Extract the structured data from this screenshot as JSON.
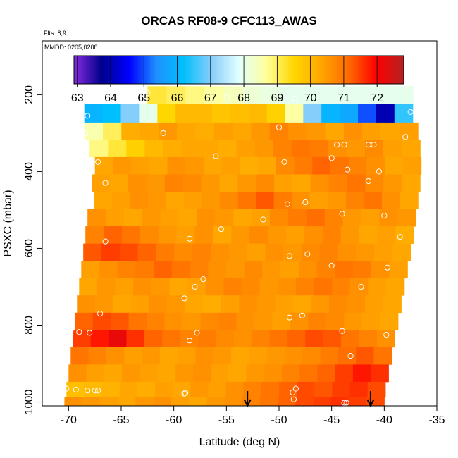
{
  "title": "ORCAS RF08-9 CFC113_AWAS",
  "flights_note": "Flts: 8,9",
  "date_note": "MMDD: 0205,0208",
  "chart_data": {
    "type": "heatmap",
    "title": "ORCAS RF08-9 CFC113_AWAS",
    "xlabel": "Latitude (deg N)",
    "ylabel": "PSXC (mbar)",
    "xlim": [
      -72.5,
      -35
    ],
    "ylim": [
      1010,
      60
    ],
    "y_reversed": true,
    "x_ticks": [
      -70,
      -65,
      -60,
      -55,
      -50,
      -45,
      -40,
      -35
    ],
    "x_tick_labels": [
      "-70",
      "-65",
      "-60",
      "-55",
      "-50",
      "-45",
      "-40",
      "-35"
    ],
    "y_ticks": [
      200,
      400,
      600,
      800,
      1000
    ],
    "y_tick_labels": [
      "200",
      "400",
      "600",
      "800",
      "1000"
    ],
    "colorbar": {
      "min": 62.9,
      "max": 72.8,
      "ticks": [
        63,
        64,
        65,
        66,
        67,
        68,
        69,
        70,
        71,
        72
      ],
      "tick_labels": [
        "63",
        "64",
        "65",
        "66",
        "67",
        "68",
        "69",
        "70",
        "71",
        "72"
      ],
      "colors": [
        "#8a2be2",
        "#00008b",
        "#0000ff",
        "#1e90ff",
        "#00bfff",
        "#87cefa",
        "#e0ffff",
        "#ffff99",
        "#ffd700",
        "#ffa500",
        "#ff6a00",
        "#ff0000",
        "#b22222"
      ]
    },
    "default_value": 70.3,
    "bands": [
      {
        "p": 200,
        "lat_start": -62.5,
        "lat_end": -37.2,
        "values": [
          69.2,
          69.0,
          68.8,
          68.6,
          68.4,
          68.2,
          68.1,
          68.0,
          68.0,
          68.0,
          68.0,
          68.0,
          68.0,
          68.0
        ]
      },
      {
        "p": 250,
        "lat_start": -68.5,
        "lat_end": -37.3,
        "values": [
          66.0,
          66.2,
          67.0,
          68.0,
          69.5,
          70.0,
          70.0,
          69.8,
          69.9,
          70.0,
          69.6,
          68.6,
          67.0,
          66.0,
          65.8,
          65.0,
          64.0,
          66.5
        ]
      },
      {
        "p": 295,
        "lat_start": -68.5,
        "lat_end": -36.8,
        "values": [
          68.5,
          69.0,
          70.2,
          70.3,
          70.5,
          70.3,
          70.2,
          70.4,
          70.3,
          70.5,
          70.8,
          70.6,
          70.5,
          70.3,
          70.6,
          70.4,
          70.3,
          70.4
        ]
      },
      {
        "p": 340,
        "lat_start": -68.0,
        "lat_end": -36.6,
        "values": [
          68.8,
          69.2,
          69.6,
          70.0,
          70.2,
          70.3,
          70.3,
          70.2,
          70.4,
          70.5,
          70.8,
          71.0,
          70.9,
          70.6,
          70.5,
          70.7,
          70.4,
          70.3
        ]
      },
      {
        "p": 385,
        "lat_start": -67.5,
        "lat_end": -36.5,
        "values": [
          70.3,
          70.5,
          70.4,
          70.3,
          70.6,
          70.5,
          70.3,
          70.4,
          70.2,
          70.3,
          70.7,
          70.9,
          71.2,
          71.0,
          70.8,
          70.6,
          70.3,
          70.4
        ]
      },
      {
        "p": 430,
        "lat_start": -67.8,
        "lat_end": -36.6,
        "values": [
          70.4,
          70.3,
          70.6,
          70.5,
          70.8,
          70.7,
          70.5,
          70.3,
          70.5,
          70.7,
          70.4,
          70.3,
          70.6,
          70.8,
          71.0,
          70.7,
          70.5,
          70.3
        ]
      },
      {
        "p": 475,
        "lat_start": -67.6,
        "lat_end": -36.8,
        "values": [
          70.3,
          70.4,
          70.6,
          70.5,
          70.3,
          70.4,
          70.5,
          70.7,
          71.0,
          71.3,
          70.9,
          70.6,
          70.4,
          70.5,
          70.8,
          71.0,
          70.6,
          70.3
        ]
      },
      {
        "p": 520,
        "lat_start": -68.2,
        "lat_end": -37.0,
        "values": [
          70.6,
          70.4,
          70.3,
          70.5,
          70.4,
          70.3,
          70.6,
          70.5,
          70.3,
          70.4,
          70.7,
          70.9,
          71.1,
          70.8,
          70.5,
          70.4,
          70.6,
          70.5
        ]
      },
      {
        "p": 565,
        "lat_start": -68.4,
        "lat_end": -37.2,
        "values": [
          70.8,
          71.2,
          71.0,
          70.7,
          70.5,
          70.4,
          70.6,
          70.3,
          70.5,
          70.7,
          70.5,
          70.4,
          70.6,
          70.8,
          70.5,
          70.3,
          70.4,
          70.2
        ]
      },
      {
        "p": 610,
        "lat_start": -68.6,
        "lat_end": -37.5,
        "values": [
          71.3,
          71.5,
          71.4,
          71.2,
          70.9,
          70.7,
          70.8,
          70.6,
          70.5,
          70.4,
          70.6,
          70.5,
          70.7,
          70.8,
          70.6,
          70.5,
          70.4,
          70.3
        ]
      },
      {
        "p": 655,
        "lat_start": -68.8,
        "lat_end": -37.8,
        "values": [
          70.4,
          70.6,
          70.8,
          70.9,
          71.2,
          71.0,
          70.8,
          70.6,
          70.5,
          70.7,
          70.5,
          70.4,
          70.6,
          70.8,
          71.0,
          70.9,
          70.6,
          70.4
        ]
      },
      {
        "p": 700,
        "lat_start": -69.0,
        "lat_end": -38.1,
        "values": [
          70.3,
          70.5,
          70.4,
          70.6,
          70.5,
          70.3,
          70.4,
          70.6,
          70.8,
          70.7,
          70.5,
          70.6,
          70.8,
          71.0,
          70.8,
          70.6,
          70.4,
          70.3
        ]
      },
      {
        "p": 745,
        "lat_start": -69.2,
        "lat_end": -38.4,
        "values": [
          70.6,
          70.5,
          70.3,
          70.4,
          70.6,
          70.5,
          70.3,
          70.2,
          70.4,
          70.6,
          70.5,
          70.4,
          70.3,
          70.5,
          70.7,
          70.6,
          70.4,
          70.3
        ]
      },
      {
        "p": 790,
        "lat_start": -69.4,
        "lat_end": -38.7,
        "values": [
          71.2,
          71.4,
          71.3,
          71.0,
          70.8,
          70.6,
          70.5,
          70.7,
          70.8,
          70.6,
          70.5,
          70.4,
          70.6,
          70.8,
          70.7,
          70.5,
          70.4,
          70.3
        ]
      },
      {
        "p": 835,
        "lat_start": -69.6,
        "lat_end": -39.0,
        "values": [
          71.5,
          71.8,
          72.2,
          71.6,
          71.2,
          71.0,
          70.8,
          70.9,
          70.7,
          70.6,
          70.8,
          71.0,
          71.2,
          71.4,
          71.3,
          71.0,
          70.8,
          70.6
        ]
      },
      {
        "p": 880,
        "lat_start": -69.8,
        "lat_end": -39.3,
        "values": [
          71.0,
          70.8,
          70.6,
          70.4,
          70.5,
          70.3,
          70.4,
          70.6,
          70.5,
          70.3,
          70.4,
          70.5,
          70.6,
          70.7,
          70.9,
          71.1,
          71.3,
          71.0
        ]
      },
      {
        "p": 925,
        "lat_start": -70.0,
        "lat_end": -39.6,
        "values": [
          70.6,
          70.4,
          70.3,
          70.5,
          70.4,
          70.3,
          70.5,
          70.6,
          70.4,
          70.3,
          70.5,
          70.6,
          70.8,
          71.0,
          71.2,
          71.5,
          71.8,
          71.6
        ]
      },
      {
        "p": 970,
        "lat_start": -70.2,
        "lat_end": -39.9,
        "values": [
          69.9,
          70.0,
          70.1,
          70.3,
          70.2,
          70.4,
          70.3,
          70.5,
          70.4,
          70.6,
          70.8,
          71.0,
          71.2,
          71.4,
          71.3,
          71.5,
          71.6,
          71.4
        ]
      },
      {
        "p": 1005,
        "lat_start": -70.4,
        "lat_end": -40.0,
        "values": [
          70.6,
          70.5,
          70.4,
          70.3,
          70.5,
          70.6,
          70.4,
          70.3,
          70.5,
          70.6,
          70.8,
          71.0,
          71.2,
          71.4,
          71.5,
          71.6,
          71.5,
          71.4
        ]
      }
    ],
    "sample_points": [
      {
        "lat": -62.5,
        "p": 195
      },
      {
        "lat": -55.0,
        "p": 205
      },
      {
        "lat": -48.5,
        "p": 210
      },
      {
        "lat": -37.0,
        "p": 190
      },
      {
        "lat": -36.0,
        "p": 190
      },
      {
        "lat": -35.5,
        "p": 190
      },
      {
        "lat": -68.0,
        "p": 215
      },
      {
        "lat": -68.2,
        "p": 255
      },
      {
        "lat": -68.4,
        "p": 300
      },
      {
        "lat": -61.0,
        "p": 300
      },
      {
        "lat": -50.0,
        "p": 285
      },
      {
        "lat": -37.5,
        "p": 245
      },
      {
        "lat": -44.5,
        "p": 330
      },
      {
        "lat": -43.8,
        "p": 330
      },
      {
        "lat": -41.5,
        "p": 330
      },
      {
        "lat": -41.0,
        "p": 330
      },
      {
        "lat": -38.0,
        "p": 310
      },
      {
        "lat": -67.2,
        "p": 375
      },
      {
        "lat": -56.0,
        "p": 360
      },
      {
        "lat": -49.5,
        "p": 375
      },
      {
        "lat": -45.0,
        "p": 365
      },
      {
        "lat": -43.5,
        "p": 395
      },
      {
        "lat": -40.5,
        "p": 400
      },
      {
        "lat": -66.5,
        "p": 430
      },
      {
        "lat": -41.5,
        "p": 425
      },
      {
        "lat": -49.2,
        "p": 485
      },
      {
        "lat": -47.5,
        "p": 480
      },
      {
        "lat": -44.0,
        "p": 510
      },
      {
        "lat": -40.0,
        "p": 515
      },
      {
        "lat": -70.5,
        "p": 572
      },
      {
        "lat": -70.0,
        "p": 575
      },
      {
        "lat": -66.5,
        "p": 582
      },
      {
        "lat": -58.5,
        "p": 575
      },
      {
        "lat": -55.5,
        "p": 550
      },
      {
        "lat": -51.5,
        "p": 525
      },
      {
        "lat": -38.5,
        "p": 570
      },
      {
        "lat": -49.0,
        "p": 620
      },
      {
        "lat": -47.3,
        "p": 615
      },
      {
        "lat": -45.0,
        "p": 645
      },
      {
        "lat": -39.7,
        "p": 650
      },
      {
        "lat": -58.0,
        "p": 700
      },
      {
        "lat": -57.2,
        "p": 680
      },
      {
        "lat": -59.0,
        "p": 730
      },
      {
        "lat": -42.2,
        "p": 700
      },
      {
        "lat": -70.3,
        "p": 750
      },
      {
        "lat": -70.7,
        "p": 775
      },
      {
        "lat": -67.0,
        "p": 770
      },
      {
        "lat": -49.0,
        "p": 780
      },
      {
        "lat": -47.8,
        "p": 775
      },
      {
        "lat": -70.5,
        "p": 815
      },
      {
        "lat": -69.8,
        "p": 815
      },
      {
        "lat": -69.0,
        "p": 818
      },
      {
        "lat": -68.0,
        "p": 820
      },
      {
        "lat": -57.8,
        "p": 820
      },
      {
        "lat": -58.5,
        "p": 840
      },
      {
        "lat": -44.0,
        "p": 815
      },
      {
        "lat": -39.8,
        "p": 825
      },
      {
        "lat": -71.8,
        "p": 822
      },
      {
        "lat": -43.2,
        "p": 880
      },
      {
        "lat": -71.2,
        "p": 960
      },
      {
        "lat": -70.9,
        "p": 965
      },
      {
        "lat": -70.2,
        "p": 965
      },
      {
        "lat": -69.3,
        "p": 968
      },
      {
        "lat": -68.2,
        "p": 970
      },
      {
        "lat": -67.5,
        "p": 970
      },
      {
        "lat": -67.2,
        "p": 970
      },
      {
        "lat": -59.0,
        "p": 978
      },
      {
        "lat": -58.9,
        "p": 976
      },
      {
        "lat": -48.7,
        "p": 975
      },
      {
        "lat": -48.4,
        "p": 965
      },
      {
        "lat": -48.6,
        "p": 993
      },
      {
        "lat": -43.8,
        "p": 1002
      },
      {
        "lat": -43.6,
        "p": 1002
      },
      {
        "lat": -39.7,
        "p": 1005
      }
    ],
    "arrows": [
      {
        "lat": -53.0
      },
      {
        "lat": -41.3
      }
    ]
  }
}
